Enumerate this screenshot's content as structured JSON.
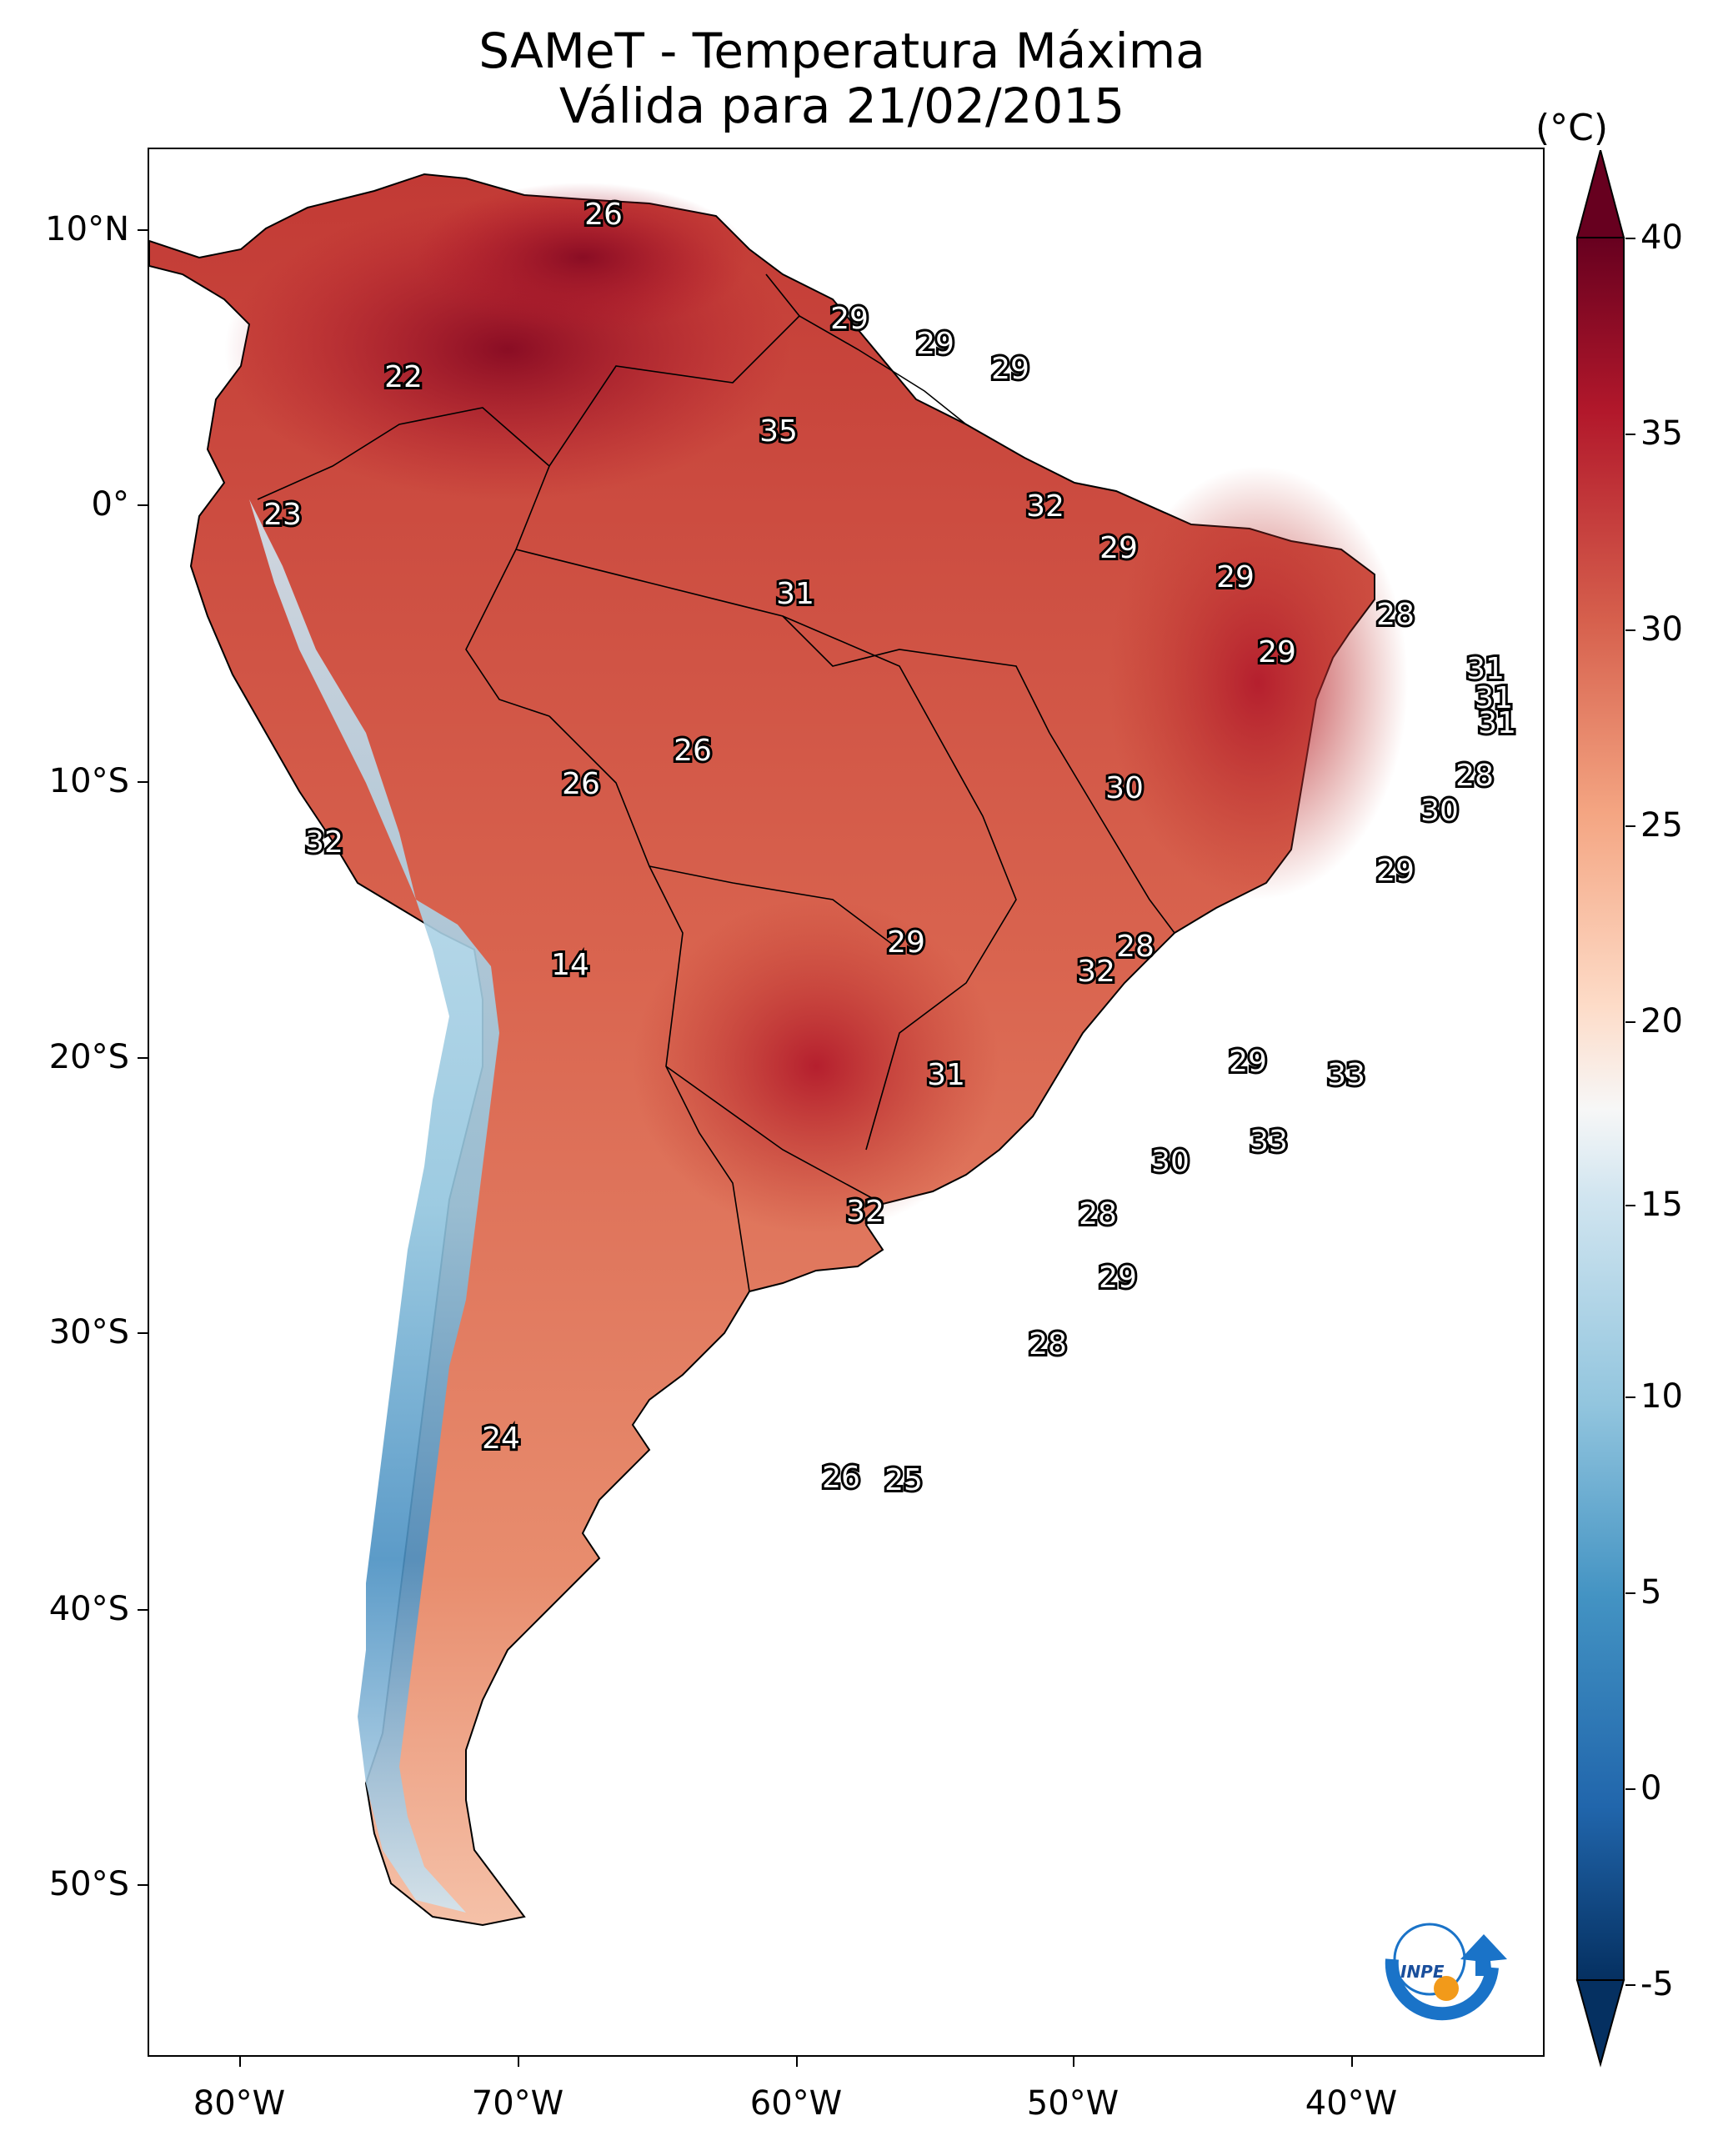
{
  "title_line1": "SAMeT - Temperatura Máxima",
  "title_line2": "Válida para 21/02/2015",
  "colorbar": {
    "unit": "(°C)",
    "ticks": [
      "40",
      "35",
      "30",
      "25",
      "20",
      "15",
      "10",
      "5",
      "0",
      "-5"
    ],
    "range": [
      -5,
      40
    ],
    "extend": "both",
    "colormap": "RdBu_r",
    "colors": [
      "#053061",
      "#2166ac",
      "#4393c3",
      "#92c5de",
      "#d1e5f0",
      "#f7f7f7",
      "#fddbc7",
      "#f4a582",
      "#d6604d",
      "#b2182b",
      "#67001f"
    ]
  },
  "axes": {
    "lat_ticks": [
      "10°N",
      "0°",
      "10°S",
      "20°S",
      "30°S",
      "40°S",
      "50°S"
    ],
    "lon_ticks": [
      "80°W",
      "70°W",
      "60°W",
      "50°W",
      "40°W"
    ]
  },
  "contour_labels": [
    "26",
    "22",
    "29",
    "29",
    "29",
    "35",
    "23",
    "32",
    "29",
    "29",
    "31",
    "28",
    "29",
    "31",
    "31",
    "31",
    "26",
    "26",
    "30",
    "28",
    "30",
    "32",
    "29",
    "14",
    "29",
    "28",
    "32",
    "31",
    "29",
    "33",
    "33",
    "30",
    "32",
    "28",
    "29",
    "28",
    "24",
    "26",
    "25"
  ],
  "logo": {
    "text": "INPE",
    "icon": "inpe-logo-icon"
  }
}
